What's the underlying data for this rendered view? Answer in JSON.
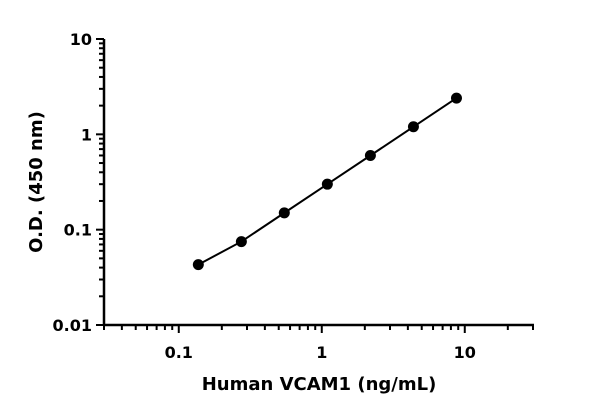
{
  "chart_data": {
    "type": "line",
    "title": "",
    "xlabel": "Human VCAM1 (ng/mL)",
    "ylabel": "O.D. (450 nm)",
    "xscale": "log",
    "yscale": "log",
    "xlim": [
      0.03,
      30
    ],
    "ylim": [
      0.01,
      10
    ],
    "xticks": [
      "0.1",
      "1",
      "10"
    ],
    "yticks": [
      "0.01",
      "0.1",
      "1",
      "10"
    ],
    "grid": false,
    "marker": "circle",
    "color": "#000000",
    "series": [
      {
        "x": [
          0.137,
          0.274,
          0.547,
          1.094,
          2.188,
          4.375,
          8.75
        ],
        "y": [
          0.043,
          0.075,
          0.15,
          0.3,
          0.6,
          1.2,
          2.4
        ]
      }
    ]
  }
}
